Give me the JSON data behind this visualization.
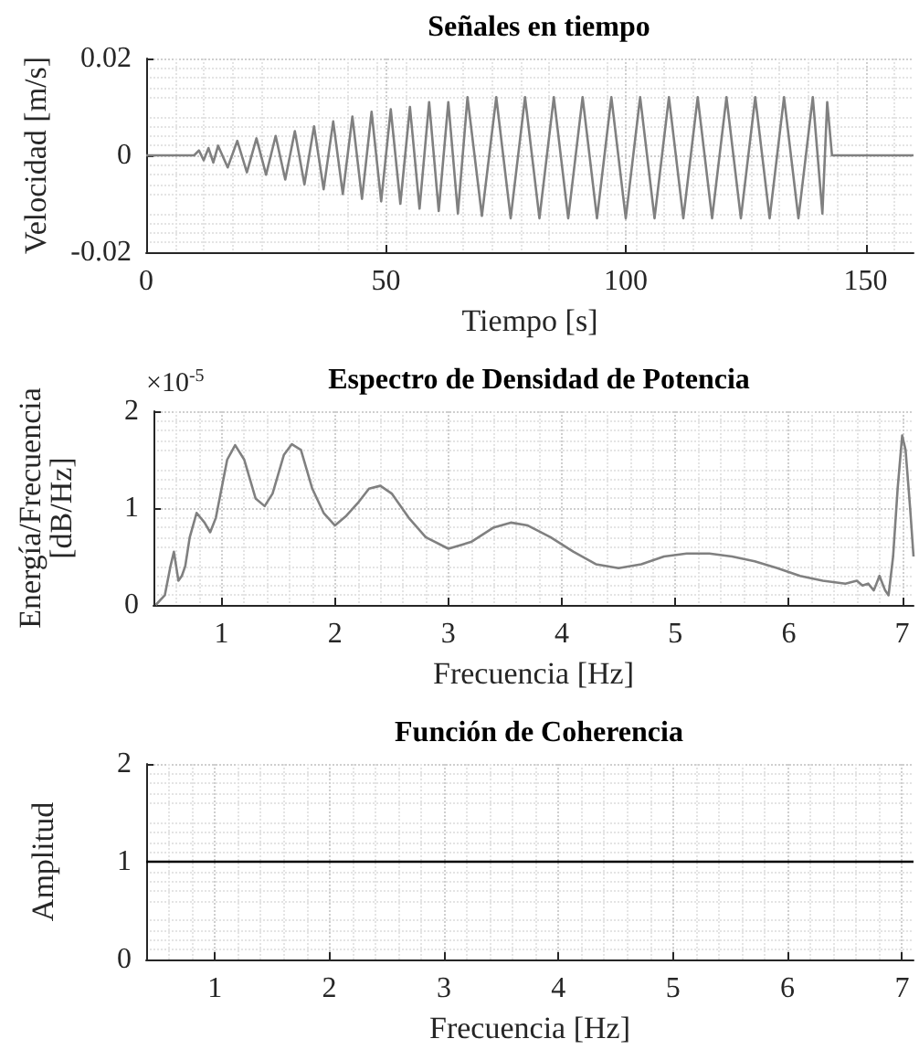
{
  "chart_data": [
    {
      "type": "line",
      "title": "Señales en tiempo",
      "xlabel": "Tiempo [s]",
      "ylabel": "Velocidad [m/s]",
      "xlim": [
        0,
        160
      ],
      "xticks": [
        0,
        50,
        100,
        150
      ],
      "ylim": [
        -0.02,
        0.02
      ],
      "yticks": [
        -0.02,
        0,
        0.02
      ],
      "grid": true,
      "series": [
        {
          "color": "#808080",
          "x": [
            0,
            10,
            11,
            12,
            13,
            14,
            15,
            17,
            19,
            21,
            23,
            25,
            27,
            29,
            31,
            33,
            35,
            37,
            39,
            41,
            43,
            45,
            47,
            49,
            51,
            53,
            55,
            57,
            59,
            61,
            63,
            65,
            67,
            70,
            73,
            76,
            79,
            82,
            85,
            88,
            91,
            94,
            97,
            100,
            103,
            106,
            109,
            112,
            115,
            118,
            121,
            124,
            127,
            130,
            133,
            136,
            139,
            141,
            142,
            143,
            160
          ],
          "values": [
            0,
            0,
            0.001,
            -0.001,
            0.0015,
            -0.0015,
            0.002,
            -0.0025,
            0.003,
            -0.0035,
            0.0035,
            -0.004,
            0.004,
            -0.005,
            0.005,
            -0.006,
            0.006,
            -0.007,
            0.007,
            -0.008,
            0.008,
            -0.009,
            0.009,
            -0.0095,
            0.0095,
            -0.01,
            0.01,
            -0.011,
            0.011,
            -0.0115,
            0.011,
            -0.012,
            0.012,
            -0.0125,
            0.012,
            -0.013,
            0.012,
            -0.013,
            0.012,
            -0.013,
            0.012,
            -0.013,
            0.012,
            -0.013,
            0.012,
            -0.013,
            0.012,
            -0.013,
            0.012,
            -0.013,
            0.012,
            -0.013,
            0.012,
            -0.013,
            0.012,
            -0.013,
            0.012,
            -0.012,
            0.011,
            0,
            0
          ]
        }
      ]
    },
    {
      "type": "line",
      "title": "Espectro de Densidad de Potencia",
      "xlabel": "Frecuencia [Hz]",
      "ylabel": "Energía/Frecuencia\n[dB/Hz]",
      "annotations": [
        "×10$^{-5}$"
      ],
      "xlim": [
        0.4,
        7.1
      ],
      "xticks": [
        1,
        2,
        3,
        4,
        5,
        6,
        7
      ],
      "ylim": [
        0,
        2
      ],
      "yticks": [
        0,
        1,
        2
      ],
      "grid": true,
      "series": [
        {
          "color": "#808080",
          "x": [
            0.42,
            0.5,
            0.55,
            0.58,
            0.62,
            0.65,
            0.68,
            0.72,
            0.78,
            0.85,
            0.9,
            0.95,
            1.0,
            1.05,
            1.12,
            1.2,
            1.3,
            1.38,
            1.45,
            1.55,
            1.62,
            1.7,
            1.8,
            1.9,
            2.0,
            2.1,
            2.2,
            2.3,
            2.4,
            2.5,
            2.65,
            2.8,
            3.0,
            3.2,
            3.4,
            3.55,
            3.7,
            3.9,
            4.1,
            4.3,
            4.5,
            4.7,
            4.9,
            5.1,
            5.3,
            5.5,
            5.7,
            5.9,
            6.1,
            6.3,
            6.5,
            6.6,
            6.65,
            6.7,
            6.75,
            6.8,
            6.85,
            6.88,
            6.92,
            6.96,
            7.0,
            7.03,
            7.07,
            7.1
          ],
          "values": [
            0,
            0.1,
            0.4,
            0.55,
            0.25,
            0.3,
            0.4,
            0.7,
            0.95,
            0.85,
            0.75,
            0.9,
            1.2,
            1.5,
            1.65,
            1.5,
            1.1,
            1.02,
            1.15,
            1.55,
            1.66,
            1.6,
            1.2,
            0.95,
            0.82,
            0.92,
            1.05,
            1.2,
            1.23,
            1.15,
            0.9,
            0.7,
            0.58,
            0.65,
            0.8,
            0.85,
            0.82,
            0.7,
            0.55,
            0.42,
            0.38,
            0.42,
            0.5,
            0.53,
            0.53,
            0.5,
            0.45,
            0.38,
            0.3,
            0.25,
            0.22,
            0.25,
            0.2,
            0.22,
            0.15,
            0.3,
            0.15,
            0.1,
            0.5,
            1.2,
            1.75,
            1.6,
            1.0,
            0.5
          ]
        }
      ]
    },
    {
      "type": "line",
      "title": "Función de Coherencia",
      "xlabel": "Frecuencia [Hz]",
      "ylabel": "Amplitud",
      "xlim": [
        0.4,
        7.1
      ],
      "xticks": [
        1,
        2,
        3,
        4,
        5,
        6,
        7
      ],
      "ylim": [
        0,
        2
      ],
      "yticks": [
        0,
        1,
        2
      ],
      "grid": true,
      "series": [
        {
          "color": "#000000",
          "x": [
            0.4,
            7.1
          ],
          "values": [
            1,
            1
          ]
        }
      ]
    }
  ]
}
